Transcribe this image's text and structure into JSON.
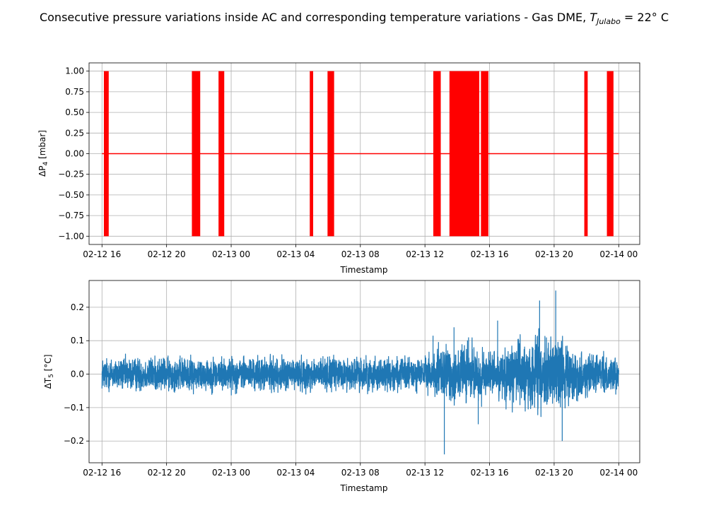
{
  "figure": {
    "title": "Consecutive pressure variations inside AC and corresponding temperature variations - Gas DME, ",
    "title_T": "T",
    "title_sub": "Julabo",
    "title_suffix": " = 22° C"
  },
  "chart_data": [
    {
      "type": "line",
      "xlabel": "Timestamp",
      "ylabel_prefix": "ΔP",
      "ylabel_sub": "4",
      "ylabel_suffix": " [mbar]",
      "x_ticks": [
        "02-12 16",
        "02-12 20",
        "02-13 00",
        "02-13 04",
        "02-13 08",
        "02-13 12",
        "02-13 16",
        "02-13 20",
        "02-14 00"
      ],
      "x_range_hours": [
        -0.8,
        33.3
      ],
      "y_range": [
        -1.1,
        1.1
      ],
      "y_ticks": [
        "1.00",
        "0.75",
        "0.50",
        "0.25",
        "0.00",
        "−0.25",
        "−0.50",
        "−0.75",
        "−1.00"
      ],
      "y_tick_values": [
        1.0,
        0.75,
        0.5,
        0.25,
        0.0,
        -0.25,
        -0.5,
        -0.75,
        -1.0
      ],
      "grid": true,
      "color": "#ff0000",
      "baseline": 0,
      "series": [
        {
          "values_note": "",
          "spike_intervals_hours": [
            [
              0.15,
              0.4
            ],
            [
              5.6,
              6.05
            ],
            [
              7.25,
              7.55
            ],
            [
              12.9,
              13.05
            ],
            [
              14.0,
              14.35
            ],
            [
              20.55,
              20.95
            ],
            [
              21.55,
              23.35
            ],
            [
              23.5,
              23.9
            ],
            [
              29.9,
              30.05
            ],
            [
              31.3,
              31.65
            ]
          ],
          "spike_levels": [
            1.0,
            -1.0
          ]
        }
      ]
    },
    {
      "type": "line",
      "xlabel": "Timestamp",
      "ylabel_prefix": "ΔT",
      "ylabel_sub": "5",
      "ylabel_suffix": " [°C]",
      "x_ticks": [
        "02-12 16",
        "02-12 20",
        "02-13 00",
        "02-13 04",
        "02-13 08",
        "02-13 12",
        "02-13 16",
        "02-13 20",
        "02-14 00"
      ],
      "x_range_hours": [
        -0.8,
        33.3
      ],
      "y_range": [
        -0.265,
        0.28
      ],
      "y_ticks": [
        "0.2",
        "0.1",
        "0.0",
        "−0.1",
        "−0.2"
      ],
      "y_tick_values": [
        0.2,
        0.1,
        0.0,
        -0.1,
        -0.2
      ],
      "grid": true,
      "color": "#1f77b4",
      "series": [
        {
          "noise_profile_hours": [
            [
              0,
              0.07
            ],
            [
              20,
              0.07
            ],
            [
              21,
              0.12
            ],
            [
              22.5,
              0.13
            ],
            [
              24,
              0.09
            ],
            [
              26,
              0.15
            ],
            [
              28,
              0.16
            ],
            [
              29,
              0.1
            ],
            [
              31,
              0.08
            ],
            [
              32,
              0.07
            ]
          ],
          "extremes": [
            [
              20.5,
              0.115
            ],
            [
              21.2,
              -0.24
            ],
            [
              21.8,
              0.14
            ],
            [
              22.7,
              0.11
            ],
            [
              24.5,
              0.16
            ],
            [
              27.1,
              0.22
            ],
            [
              28.1,
              0.25
            ],
            [
              28.5,
              -0.2
            ],
            [
              23.3,
              -0.15
            ]
          ]
        }
      ]
    }
  ]
}
